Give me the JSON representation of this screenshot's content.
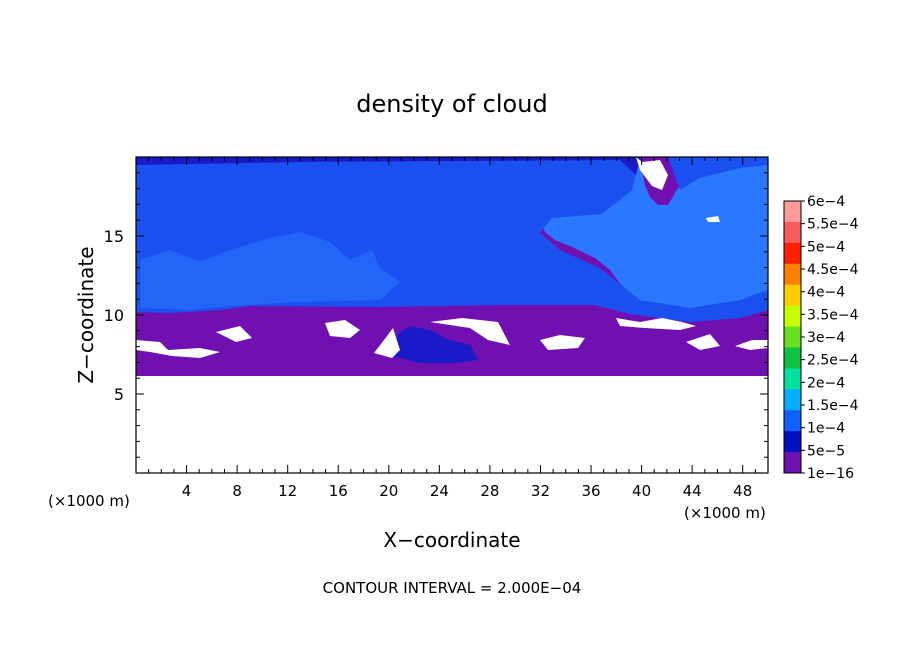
{
  "chart_data": {
    "type": "heatmap",
    "title": "density of cloud",
    "xlabel": "X−coordinate",
    "ylabel": "Z−coordinate",
    "x_units": "(×1000 m)",
    "z_units": "(×1000 m)",
    "xlim": [
      0,
      50
    ],
    "ylim": [
      0,
      20
    ],
    "x_ticks": [
      4,
      8,
      12,
      16,
      20,
      24,
      28,
      32,
      36,
      40,
      44,
      48
    ],
    "y_ticks": [
      5,
      10,
      15
    ],
    "colorbar": {
      "labels": [
        "6e−4",
        "5.5e−4",
        "5e−4",
        "4.5e−4",
        "4e−4",
        "3.5e−4",
        "3e−4",
        "2.5e−4",
        "2e−4",
        "1.5e−4",
        "1e−4",
        "5e−5",
        "1e−16"
      ],
      "colors": [
        "#ff9a9a",
        "#ff5a5a",
        "#ff2000",
        "#ff8000",
        "#ffcc00",
        "#c8ff00",
        "#66e020",
        "#10c040",
        "#00e0a0",
        "#00b0ff",
        "#1060ff",
        "#0010c0",
        "#7010b0"
      ]
    },
    "field_colors": {
      "blue": "#1a50f0",
      "light_blue": "#2a78ff",
      "dark_blue": "#1a1ac8",
      "purple": "#7010b0",
      "white": "#ffffff"
    },
    "footer": "CONTOUR INTERVAL = 2.000E−04"
  }
}
